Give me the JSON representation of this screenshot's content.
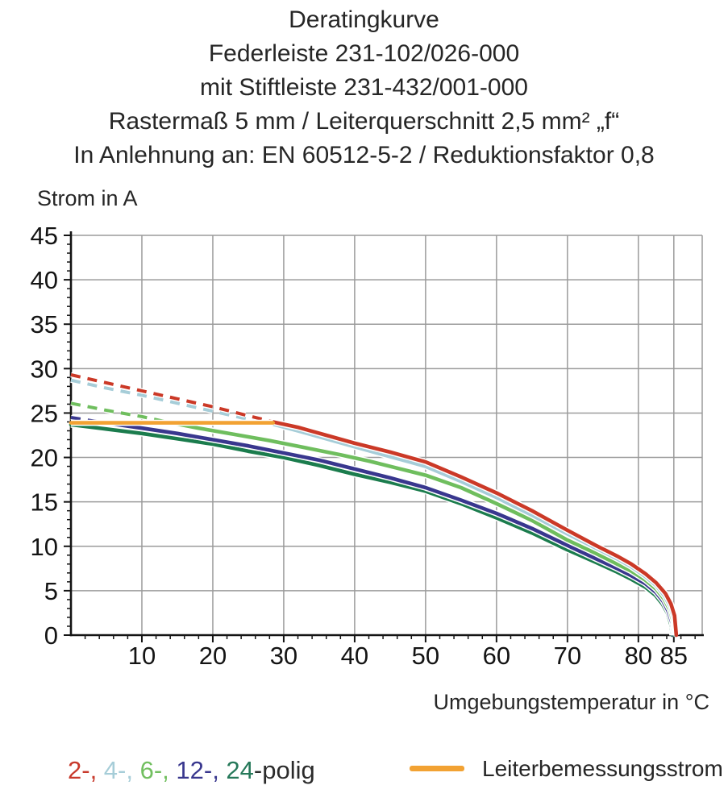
{
  "title_lines": [
    "Deratingkurve",
    "Federleiste 231-102/026-000",
    "mit Stiftleiste 231-432/001-000",
    "Rastermaß 5 mm / Leiterquerschnitt 2,5 mm² „f“",
    "In Anlehnung an: EN 60512-5-2 / Reduktionsfaktor 0,8"
  ],
  "y_axis_title": "Strom in A",
  "x_axis_title": "Umgebungstemperatur in °C",
  "legend": {
    "pole_segments": [
      {
        "text": "2-,",
        "color": "#c8392b"
      },
      {
        "text": " 4-,",
        "color": "#a6cdd8"
      },
      {
        "text": " 6-,",
        "color": "#72bf60"
      },
      {
        "text": " 12-,",
        "color": "#39378e"
      },
      {
        "text": " 24",
        "color": "#26795a"
      },
      {
        "text": "-polig",
        "color": "#2b2b2b"
      }
    ],
    "rated_current_label": "Leiterbemessungsstrom"
  },
  "colors": {
    "grid": "#9b9b9b",
    "axis": "#141414",
    "background": "#ffffff",
    "rated_current": "#f2a233"
  },
  "chart_data": {
    "type": "line",
    "title": "Deratingkurve",
    "xlabel": "Umgebungstemperatur in °C",
    "ylabel": "Strom in A",
    "xlim": [
      0,
      89
    ],
    "ylim": [
      0,
      45
    ],
    "grid": true,
    "x_major_ticks": [
      10,
      20,
      30,
      40,
      50,
      60,
      70,
      80,
      85
    ],
    "y_major_ticks": [
      0,
      5,
      10,
      15,
      20,
      25,
      30,
      35,
      40,
      45
    ],
    "x_minor_step": 2,
    "y_minor_step": 1,
    "note": "dashed segments exceed the 24 A rated conductor current; solid segments are the usable derating curves",
    "draw_order": [
      4,
      3,
      2,
      1,
      0,
      5
    ],
    "series": [
      {
        "name": "2-polig",
        "color": "#cb3927",
        "dashed_points": [
          [
            0,
            29.3
          ],
          [
            5,
            28.4
          ],
          [
            10,
            27.5
          ],
          [
            15,
            26.6
          ],
          [
            20,
            25.7
          ],
          [
            25,
            24.7
          ],
          [
            28.5,
            24.0
          ]
        ],
        "solid_points": [
          [
            28.5,
            24.0
          ],
          [
            32,
            23.4
          ],
          [
            36,
            22.5
          ],
          [
            40,
            21.6
          ],
          [
            45,
            20.6
          ],
          [
            50,
            19.5
          ],
          [
            55,
            17.8
          ],
          [
            60,
            16.0
          ],
          [
            65,
            14.0
          ],
          [
            70,
            11.8
          ],
          [
            74,
            10.1
          ],
          [
            77,
            8.9
          ],
          [
            79,
            8.0
          ],
          [
            81,
            6.9
          ],
          [
            82.5,
            5.9
          ],
          [
            83.8,
            4.7
          ],
          [
            84.6,
            3.5
          ],
          [
            85.1,
            2.2
          ],
          [
            85.35,
            0
          ]
        ]
      },
      {
        "name": "4-polig",
        "color": "#a6cdd8",
        "dashed_points": [
          [
            0,
            28.7
          ],
          [
            5,
            27.8
          ],
          [
            10,
            27.0
          ],
          [
            15,
            26.1
          ],
          [
            20,
            25.2
          ],
          [
            25,
            24.3
          ],
          [
            27.8,
            23.9
          ]
        ],
        "solid_points": [
          [
            27.8,
            23.9
          ],
          [
            32,
            23.0
          ],
          [
            36,
            22.1
          ],
          [
            40,
            21.2
          ],
          [
            45,
            20.1
          ],
          [
            50,
            19.0
          ],
          [
            55,
            17.3
          ],
          [
            60,
            15.5
          ],
          [
            65,
            13.5
          ],
          [
            70,
            11.4
          ],
          [
            74,
            9.8
          ],
          [
            77,
            8.6
          ],
          [
            79,
            7.7
          ],
          [
            81,
            6.6
          ],
          [
            82.5,
            5.6
          ],
          [
            83.7,
            4.4
          ],
          [
            84.5,
            3.2
          ],
          [
            85.0,
            1.9
          ],
          [
            85.2,
            0
          ]
        ]
      },
      {
        "name": "6-polig",
        "color": "#6fbe5e",
        "dashed_points": [
          [
            0,
            26.1
          ],
          [
            5,
            25.3
          ],
          [
            10,
            24.6
          ],
          [
            13.5,
            24.0
          ]
        ],
        "solid_points": [
          [
            13.5,
            24.0
          ],
          [
            18,
            23.3
          ],
          [
            23,
            22.6
          ],
          [
            28,
            21.9
          ],
          [
            33,
            21.1
          ],
          [
            38,
            20.3
          ],
          [
            42,
            19.6
          ],
          [
            46,
            18.8
          ],
          [
            50,
            18.0
          ],
          [
            55,
            16.6
          ],
          [
            60,
            14.8
          ],
          [
            65,
            12.9
          ],
          [
            70,
            10.7
          ],
          [
            74,
            9.2
          ],
          [
            77,
            8.0
          ],
          [
            79,
            7.2
          ],
          [
            81,
            6.2
          ],
          [
            82.5,
            5.2
          ],
          [
            83.6,
            4.1
          ],
          [
            84.4,
            2.9
          ],
          [
            84.9,
            1.6
          ],
          [
            85.1,
            0
          ]
        ]
      },
      {
        "name": "12-polig",
        "color": "#39378e",
        "dashed_points": [
          [
            0,
            24.5
          ],
          [
            4,
            24.0
          ]
        ],
        "solid_points": [
          [
            4,
            24.0
          ],
          [
            10,
            23.3
          ],
          [
            15,
            22.7
          ],
          [
            20,
            22.0
          ],
          [
            25,
            21.3
          ],
          [
            30,
            20.5
          ],
          [
            35,
            19.7
          ],
          [
            40,
            18.7
          ],
          [
            45,
            17.7
          ],
          [
            50,
            16.6
          ],
          [
            55,
            15.2
          ],
          [
            60,
            13.7
          ],
          [
            65,
            12.0
          ],
          [
            70,
            10.1
          ],
          [
            74,
            8.6
          ],
          [
            77,
            7.5
          ],
          [
            79,
            6.7
          ],
          [
            81,
            5.8
          ],
          [
            82.5,
            4.8
          ],
          [
            83.5,
            3.8
          ],
          [
            84.2,
            2.7
          ],
          [
            84.75,
            1.4
          ],
          [
            84.95,
            0
          ]
        ]
      },
      {
        "name": "24-polig",
        "color": "#1b7c4d",
        "solid_points": [
          [
            0,
            23.7
          ],
          [
            5,
            23.2
          ],
          [
            10,
            22.7
          ],
          [
            15,
            22.1
          ],
          [
            20,
            21.5
          ],
          [
            25,
            20.7
          ],
          [
            30,
            20.0
          ],
          [
            35,
            19.1
          ],
          [
            40,
            18.1
          ],
          [
            45,
            17.2
          ],
          [
            50,
            16.2
          ],
          [
            55,
            14.8
          ],
          [
            60,
            13.2
          ],
          [
            65,
            11.5
          ],
          [
            70,
            9.6
          ],
          [
            74,
            8.2
          ],
          [
            77,
            7.1
          ],
          [
            79,
            6.3
          ],
          [
            81,
            5.4
          ],
          [
            82.4,
            4.5
          ],
          [
            83.4,
            3.5
          ],
          [
            84.1,
            2.5
          ],
          [
            84.6,
            1.2
          ],
          [
            84.8,
            0
          ]
        ]
      },
      {
        "name": "Leiterbemessungsstrom",
        "color": "#f2a233",
        "solid_points": [
          [
            0,
            23.9
          ],
          [
            28.5,
            23.9
          ]
        ]
      }
    ]
  }
}
